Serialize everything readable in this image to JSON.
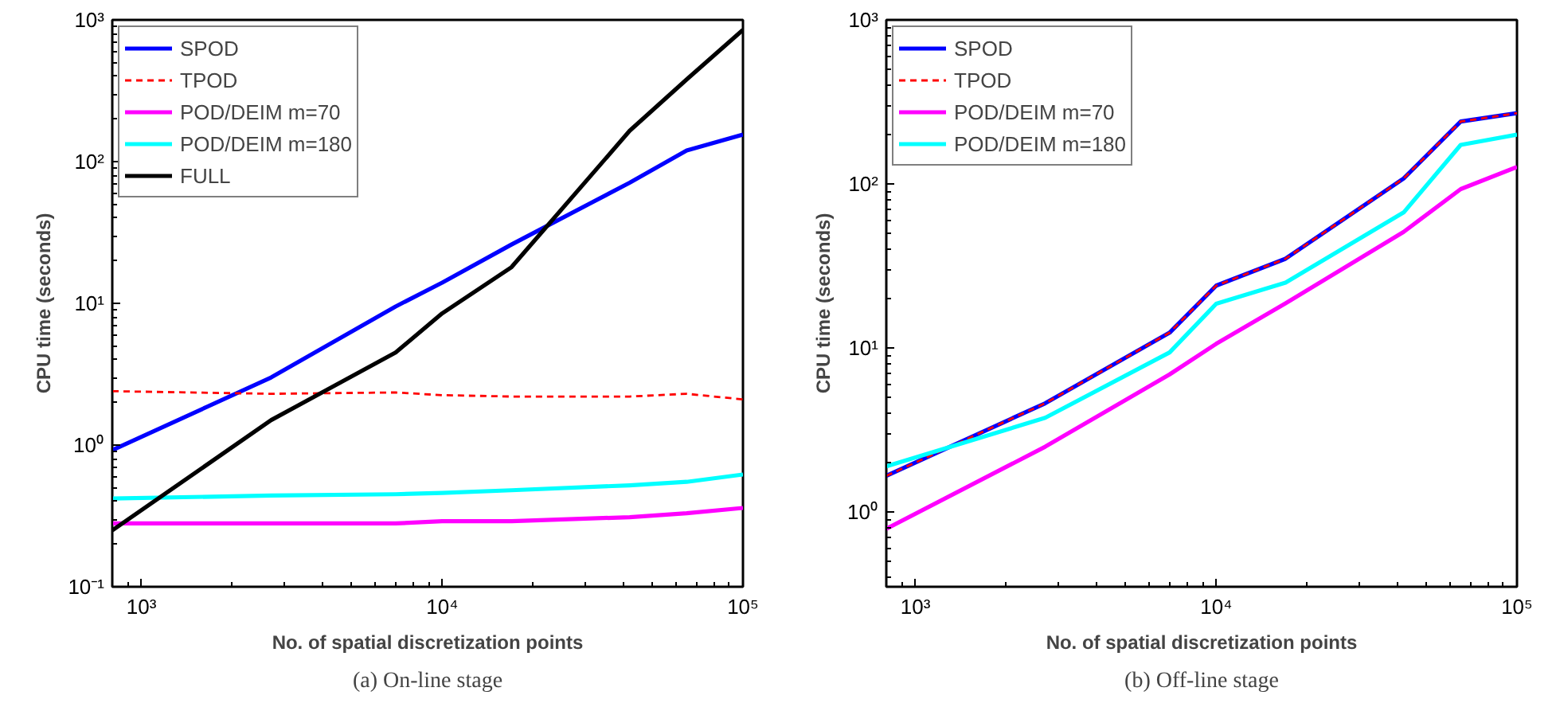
{
  "chart_data": [
    {
      "type": "line",
      "xlabel": "No. of spatial discretization points",
      "ylabel": "CPU time (seconds)",
      "annotations": [
        "(a) On-line stage"
      ],
      "log": "xy",
      "grid": false,
      "legend": "top left",
      "marker": "none",
      "x": [
        800,
        2700,
        7000,
        10000,
        17000,
        42000,
        65000,
        100000
      ],
      "xlim": [
        800,
        100000
      ],
      "xticks": [
        {
          "value": 1000,
          "label": "10³"
        },
        {
          "value": 10000,
          "label": "10⁴"
        },
        {
          "value": 100000,
          "label": "10⁵"
        }
      ],
      "ylim": [
        0.1,
        1000
      ],
      "yticks": [
        {
          "value": 0.1,
          "label": "10⁻¹"
        },
        {
          "value": 1,
          "label": "10⁰"
        },
        {
          "value": 10,
          "label": "10¹"
        },
        {
          "value": 100,
          "label": "10²"
        },
        {
          "value": 1000,
          "label": "10³"
        }
      ],
      "series": [
        {
          "name": "SPOD",
          "color": "#0000ff",
          "values": [
            0.92,
            3.0,
            9.5,
            14,
            26,
            71,
            120,
            155
          ]
        },
        {
          "name": "TPOD",
          "color": "#ff0000",
          "line_style": "dashed",
          "values": [
            2.4,
            2.3,
            2.35,
            2.25,
            2.2,
            2.2,
            2.3,
            2.1
          ]
        },
        {
          "name": "POD/DEIM m=70",
          "color": "#ff00ff",
          "values": [
            0.28,
            0.28,
            0.28,
            0.29,
            0.29,
            0.31,
            0.33,
            0.36
          ]
        },
        {
          "name": "POD/DEIM m=180",
          "color": "#00ffff",
          "values": [
            0.42,
            0.44,
            0.45,
            0.46,
            0.48,
            0.52,
            0.55,
            0.62
          ]
        },
        {
          "name": "FULL",
          "color": "#000000",
          "values": [
            0.25,
            1.5,
            4.5,
            8.5,
            18,
            165,
            380,
            850
          ]
        }
      ]
    },
    {
      "type": "line",
      "xlabel": "No. of spatial discretization points",
      "ylabel": "CPU time (seconds)",
      "annotations": [
        "(b) Off-line stage"
      ],
      "log": "xy",
      "grid": false,
      "legend": "top left",
      "marker": "none",
      "x": [
        800,
        2700,
        7000,
        10000,
        17000,
        42000,
        65000,
        100000
      ],
      "xlim": [
        800,
        100000
      ],
      "xticks": [
        {
          "value": 1000,
          "label": "10³"
        },
        {
          "value": 10000,
          "label": "10⁴"
        },
        {
          "value": 100000,
          "label": "10⁵"
        }
      ],
      "ylim": [
        0.35,
        1000
      ],
      "yticks": [
        {
          "value": 1,
          "label": "10⁰"
        },
        {
          "value": 10,
          "label": "10¹"
        },
        {
          "value": 100,
          "label": "10²"
        },
        {
          "value": 1000,
          "label": "10³"
        }
      ],
      "series": [
        {
          "name": "SPOD",
          "color": "#0000ff",
          "values": [
            1.66,
            4.6,
            12.4,
            24,
            35,
            108,
            240,
            270
          ]
        },
        {
          "name": "TPOD",
          "color": "#ff0000",
          "line_style": "dashed",
          "values": [
            1.66,
            4.6,
            12.4,
            24,
            35,
            108,
            240,
            270
          ]
        },
        {
          "name": "POD/DEIM m=70",
          "color": "#ff00ff",
          "values": [
            0.79,
            2.5,
            6.9,
            10.6,
            18.7,
            51,
            93,
            127
          ]
        },
        {
          "name": "POD/DEIM m=180",
          "color": "#00ffff",
          "values": [
            1.9,
            3.75,
            9.4,
            18.6,
            25,
            67,
            173,
            200
          ]
        }
      ]
    }
  ]
}
